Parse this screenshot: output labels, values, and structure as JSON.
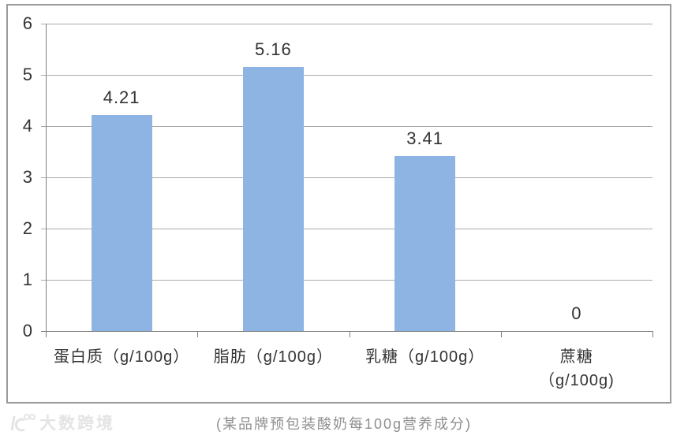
{
  "page": {
    "caption": "(某品牌预包装酸奶每100g营养成分)",
    "watermark": "大数跨境"
  },
  "chart_data": {
    "type": "bar",
    "title": "",
    "xlabel": "",
    "ylabel": "",
    "categories": [
      "蛋白质（g/100g）",
      "脂肪（g/100g）",
      "乳糖（g/100g）",
      "蔗糖\n（g/100g)"
    ],
    "values": [
      4.21,
      5.16,
      3.41,
      0
    ],
    "data_labels": [
      "4.21",
      "5.16",
      "3.41",
      "0"
    ],
    "yticks": [
      0,
      1,
      2,
      3,
      4,
      5,
      6
    ],
    "ylim": [
      0,
      6
    ],
    "grid": true,
    "legend": false,
    "data_label_position": "above",
    "colors": {
      "bar": "#8DB4E2",
      "gridline": "#ABABAB",
      "axis": "#7f7f7f",
      "frame": "#9a9a9a",
      "text": "#333333",
      "caption": "#8f8f8f",
      "watermark": "#e4e4e4"
    }
  }
}
